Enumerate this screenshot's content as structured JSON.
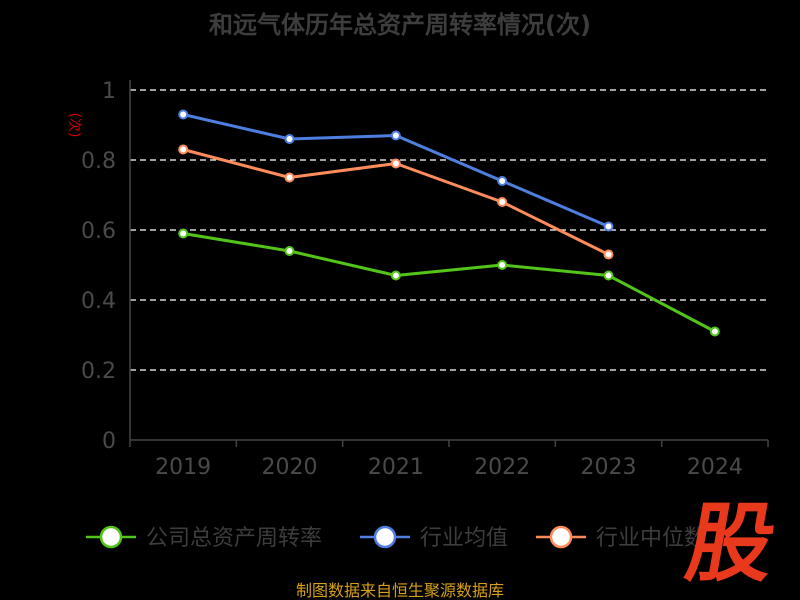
{
  "chart_data": {
    "type": "line",
    "title": "和远气体历年总资产周转率情况(次)",
    "ylabel": "(次)",
    "xlabel": "",
    "categories": [
      "2019",
      "2020",
      "2021",
      "2022",
      "2023",
      "2024"
    ],
    "ylim": [
      0,
      1
    ],
    "yticks": [
      "0",
      "0.2",
      "0.4",
      "0.6",
      "0.8",
      "1"
    ],
    "grid": true,
    "legend_position": "bottom",
    "series": [
      {
        "name": "公司总资产周转率",
        "color": "#52c41a",
        "values": [
          0.59,
          0.54,
          0.47,
          0.5,
          0.47,
          0.31
        ]
      },
      {
        "name": "行业均值",
        "color": "#4e7fe0",
        "values": [
          0.93,
          0.86,
          0.87,
          0.74,
          0.61,
          null
        ]
      },
      {
        "name": "行业中位数",
        "color": "#ff8c5a",
        "values": [
          0.83,
          0.75,
          0.79,
          0.68,
          0.53,
          null
        ]
      }
    ]
  },
  "footer": {
    "source": "制图数据来自恒生聚源数据库"
  },
  "watermark": {
    "text": "股"
  }
}
